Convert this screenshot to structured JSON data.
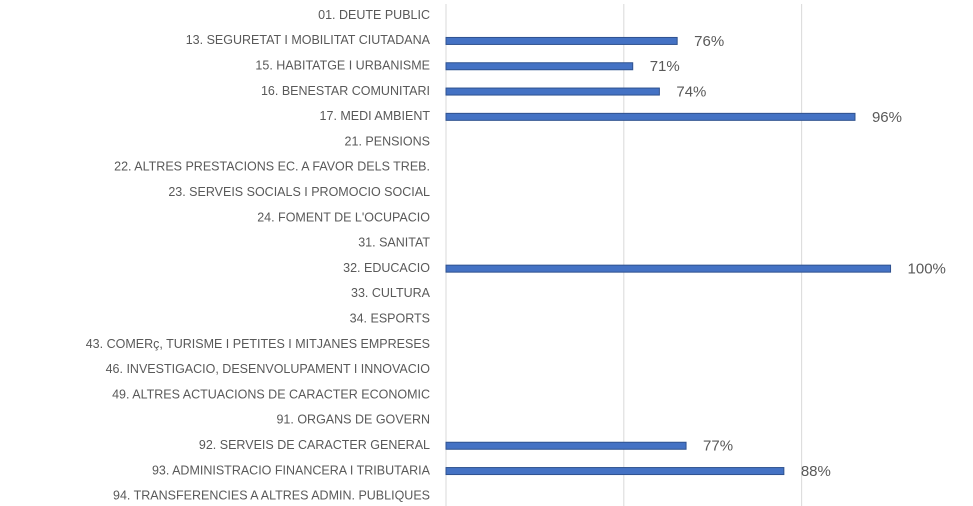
{
  "chart_data": {
    "type": "barh",
    "categories": [
      "01. DEUTE PUBLIC",
      "13. SEGURETAT I MOBILITAT CIUTADANA",
      "15. HABITATGE I URBANISME",
      "16. BENESTAR COMUNITARI",
      "17. MEDI AMBIENT",
      "21. PENSIONS",
      "22. ALTRES PRESTACIONS EC. A FAVOR DELS TREB.",
      "23. SERVEIS SOCIALS I PROMOCIO SOCIAL",
      "24. FOMENT DE L'OCUPACIO",
      "31. SANITAT",
      "32. EDUCACIO",
      "33. CULTURA",
      "34. ESPORTS",
      "43. COMERç, TURISME I PETITES I MITJANES EMPRESES",
      "46. INVESTIGACIO, DESENVOLUPAMENT I INNOVACIO",
      "49. ALTRES ACTUACIONS DE CARACTER ECONOMIC",
      "91. ORGANS DE GOVERN",
      "92. SERVEIS DE CARACTER GENERAL",
      "93. ADMINISTRACIO FINANCERA I TRIBUTARIA",
      "94. TRANSFERENCIES A ALTRES ADMIN. PUBLIQUES"
    ],
    "values": [
      null,
      76,
      71,
      74,
      96,
      null,
      null,
      null,
      null,
      null,
      100,
      null,
      null,
      null,
      null,
      null,
      null,
      77,
      88,
      null
    ],
    "value_labels": [
      null,
      "76%",
      "71%",
      "74%",
      "96%",
      null,
      null,
      null,
      null,
      null,
      "100%",
      null,
      null,
      null,
      null,
      null,
      null,
      "77%",
      "88%",
      null
    ],
    "color": "#4472c4",
    "xlim": [
      50,
      105
    ],
    "xticks": [
      50,
      70,
      90
    ],
    "grid": true
  }
}
